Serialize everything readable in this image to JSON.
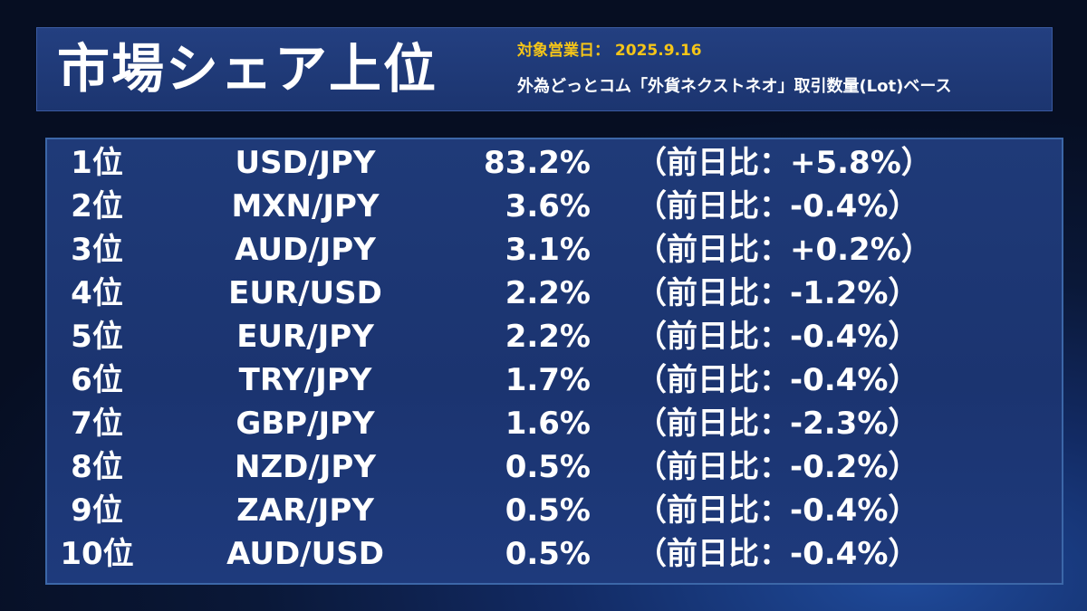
{
  "header": {
    "title": "市場シェア上位",
    "date_line": "対象営業日： 2025.9.16",
    "basis_line": "外為どっとコム「外貨ネクストネオ」取引数量(Lot)ベース"
  },
  "rows": [
    {
      "rank": "1位",
      "pair": "USD/JPY",
      "share": "83.2%",
      "change": "（前日比：+5.8%）"
    },
    {
      "rank": "2位",
      "pair": "MXN/JPY",
      "share": "3.6%",
      "change": "（前日比：-0.4%）"
    },
    {
      "rank": "3位",
      "pair": "AUD/JPY",
      "share": "3.1%",
      "change": "（前日比：+0.2%）"
    },
    {
      "rank": "4位",
      "pair": "EUR/USD",
      "share": "2.2%",
      "change": "（前日比：-1.2%）"
    },
    {
      "rank": "5位",
      "pair": "EUR/JPY",
      "share": "2.2%",
      "change": "（前日比：-0.4%）"
    },
    {
      "rank": "6位",
      "pair": "TRY/JPY",
      "share": "1.7%",
      "change": "（前日比：-0.4%）"
    },
    {
      "rank": "7位",
      "pair": "GBP/JPY",
      "share": "1.6%",
      "change": "（前日比：-2.3%）"
    },
    {
      "rank": "8位",
      "pair": "NZD/JPY",
      "share": "0.5%",
      "change": "（前日比：-0.2%）"
    },
    {
      "rank": "9位",
      "pair": "ZAR/JPY",
      "share": "0.5%",
      "change": "（前日比：-0.4%）"
    },
    {
      "rank": "10位",
      "pair": "AUD/USD",
      "share": "0.5%",
      "change": "（前日比：-0.4%）"
    }
  ],
  "colors": {
    "accent_date": "#f5c518",
    "panel_bg": "#1f3a78",
    "panel_border": "#3c67a8"
  }
}
